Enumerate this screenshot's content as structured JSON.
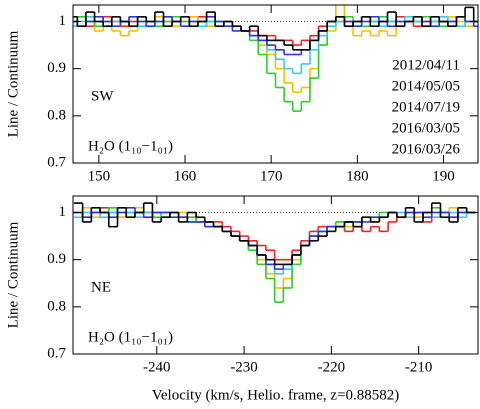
{
  "chart_data": [
    {
      "type": "line",
      "drawstyle": "steps-mid",
      "region": "SW",
      "species": "H₂O (1₁₀−1₀₁)",
      "ylabel": "Line / Continuum",
      "x": [
        147,
        148,
        149,
        150,
        151,
        152,
        153,
        154,
        155,
        156,
        157,
        158,
        159,
        160,
        161,
        162,
        163,
        164,
        165,
        166,
        167,
        168,
        169,
        170,
        171,
        172,
        173,
        174,
        175,
        176,
        177,
        178,
        179,
        180,
        181,
        182,
        183,
        184,
        185,
        186,
        187,
        188,
        189,
        190,
        191,
        192,
        193,
        194
      ],
      "series": [
        {
          "name": "2012/04/11",
          "color": "#e8252a",
          "values": [
            1.0,
            1.01,
            0.99,
            1.0,
            1.01,
            1.0,
            0.99,
            1.0,
            1.01,
            0.99,
            1.0,
            1.01,
            1.0,
            0.99,
            1.0,
            1.01,
            0.99,
            1.0,
            1.0,
            0.99,
            0.98,
            0.98,
            0.97,
            0.97,
            0.96,
            0.96,
            0.95,
            0.96,
            0.97,
            0.99,
            1.0,
            1.01,
            1.0,
            0.99,
            1.01,
            1.0,
            0.99,
            1.0,
            1.01,
            1.0,
            0.99,
            1.0,
            1.01,
            1.0,
            0.99,
            1.01,
            1.0,
            1.0
          ]
        },
        {
          "name": "2014/05/05",
          "color": "#f2c200",
          "values": [
            1.0,
            0.99,
            1.0,
            0.98,
            0.99,
            0.98,
            0.97,
            0.98,
            0.99,
            1.0,
            1.01,
            1.0,
            0.99,
            1.0,
            1.01,
            1.0,
            0.99,
            1.0,
            0.99,
            0.99,
            0.98,
            0.97,
            0.95,
            0.93,
            0.9,
            0.87,
            0.85,
            0.86,
            0.9,
            0.95,
            0.98,
            1.04,
            0.99,
            0.97,
            0.98,
            0.97,
            0.98,
            0.97,
            0.99,
            1.0,
            1.01,
            1.0,
            0.99,
            1.0,
            1.01,
            1.0,
            0.99,
            1.0
          ]
        },
        {
          "name": "2014/07/19",
          "color": "#2ecc2e",
          "values": [
            1.0,
            1.01,
            1.0,
            0.99,
            1.0,
            1.01,
            1.0,
            0.99,
            1.0,
            1.0,
            0.99,
            1.0,
            1.01,
            1.0,
            0.99,
            1.0,
            1.0,
            0.99,
            1.0,
            0.99,
            0.98,
            0.96,
            0.93,
            0.89,
            0.86,
            0.83,
            0.81,
            0.83,
            0.88,
            0.95,
            0.99,
            1.0,
            1.01,
            1.0,
            0.99,
            1.0,
            1.01,
            1.0,
            0.99,
            1.0,
            1.0,
            1.01,
            1.0,
            0.99,
            1.0,
            1.01,
            1.0,
            1.0
          ]
        },
        {
          "name": "2016/03/05",
          "color": "#33ccee",
          "values": [
            0.99,
            1.0,
            1.01,
            1.0,
            0.99,
            1.0,
            1.0,
            1.01,
            0.99,
            1.0,
            1.0,
            0.99,
            1.0,
            1.01,
            1.0,
            0.99,
            1.0,
            1.0,
            0.99,
            0.99,
            0.98,
            0.97,
            0.96,
            0.94,
            0.92,
            0.9,
            0.89,
            0.91,
            0.94,
            0.97,
            0.99,
            1.0,
            0.99,
            1.0,
            1.01,
            1.0,
            0.99,
            1.0,
            1.0,
            1.01,
            1.0,
            0.99,
            1.0,
            1.01,
            1.0,
            0.99,
            1.0,
            1.0
          ]
        },
        {
          "name": "2016/03/26",
          "color": "#3333dd",
          "values": [
            1.0,
            0.99,
            1.0,
            1.01,
            1.0,
            0.99,
            1.0,
            1.01,
            1.0,
            0.99,
            1.0,
            1.01,
            1.0,
            0.99,
            1.0,
            1.0,
            1.01,
            1.0,
            0.99,
            0.98,
            0.98,
            0.97,
            0.96,
            0.95,
            0.94,
            0.93,
            0.93,
            0.94,
            0.96,
            0.98,
            1.0,
            1.01,
            1.0,
            0.99,
            1.0,
            1.01,
            1.0,
            0.99,
            1.0,
            1.0,
            1.01,
            1.0,
            0.99,
            1.0,
            1.0,
            1.01,
            1.0,
            0.99
          ]
        },
        {
          "color": "#000000",
          "values": [
            1.01,
            0.99,
            1.02,
            1.0,
            0.99,
            1.01,
            1.0,
            0.99,
            1.01,
            1.0,
            1.02,
            0.99,
            1.0,
            1.01,
            0.99,
            1.0,
            1.02,
            0.99,
            1.0,
            0.99,
            0.98,
            0.99,
            0.97,
            0.96,
            0.96,
            0.95,
            0.94,
            0.94,
            0.96,
            0.98,
            1.0,
            1.01,
            0.99,
            1.0,
            1.01,
            0.99,
            1.0,
            1.02,
            0.99,
            1.0,
            1.01,
            0.99,
            1.01,
            1.0,
            0.99,
            1.01,
            1.03,
            1.0
          ]
        }
      ],
      "xlim": [
        147,
        194
      ],
      "ylim": [
        0.7,
        1.035
      ],
      "xticks": [
        150,
        160,
        170,
        180,
        190
      ],
      "yticks": [
        0.7,
        0.8,
        0.9,
        1
      ],
      "reference_line": 1
    },
    {
      "type": "line",
      "drawstyle": "steps-mid",
      "region": "NE",
      "species": "H₂O (1₁₀−1₀₁)",
      "ylabel": "Line / Continuum",
      "xlabel": "Velocity (km/s, Helio. frame, z=0.88582)",
      "x": [
        -249,
        -248,
        -247,
        -246,
        -245,
        -244,
        -243,
        -242,
        -241,
        -240,
        -239,
        -238,
        -237,
        -236,
        -235,
        -234,
        -233,
        -232,
        -231,
        -230,
        -229,
        -228,
        -227,
        -226,
        -225,
        -224,
        -223,
        -222,
        -221,
        -220,
        -219,
        -218,
        -217,
        -216,
        -215,
        -214,
        -213,
        -212,
        -211,
        -210,
        -209,
        -208,
        -207,
        -206,
        -205,
        -204
      ],
      "series": [
        {
          "color": "#e8252a",
          "values": [
            1.0,
            0.99,
            1.0,
            1.01,
            1.0,
            0.99,
            1.0,
            1.0,
            0.99,
            1.0,
            0.99,
            1.0,
            0.99,
            0.99,
            0.98,
            0.98,
            0.98,
            0.97,
            0.96,
            0.95,
            0.94,
            0.93,
            0.92,
            0.9,
            0.9,
            0.92,
            0.94,
            0.96,
            0.97,
            0.97,
            0.97,
            0.96,
            0.97,
            0.96,
            0.97,
            0.96,
            0.98,
            0.99,
            1.0,
            0.99,
            0.98,
            0.99,
            1.0,
            0.99,
            1.0,
            1.0
          ]
        },
        {
          "color": "#f2c200",
          "values": [
            1.0,
            1.01,
            0.99,
            1.0,
            1.0,
            0.99,
            1.0,
            1.01,
            1.0,
            0.99,
            1.0,
            0.99,
            1.0,
            0.99,
            0.98,
            0.98,
            0.97,
            0.96,
            0.95,
            0.94,
            0.92,
            0.9,
            0.87,
            0.84,
            0.86,
            0.9,
            0.93,
            0.95,
            0.96,
            0.97,
            0.98,
            0.97,
            0.98,
            0.99,
            0.98,
            0.99,
            1.0,
            0.99,
            1.0,
            0.99,
            1.0,
            0.99,
            1.0,
            1.01,
            1.0,
            1.0
          ]
        },
        {
          "color": "#2ecc2e",
          "values": [
            1.0,
            0.99,
            1.0,
            1.0,
            1.01,
            1.0,
            0.99,
            1.0,
            1.0,
            0.99,
            1.0,
            1.0,
            0.99,
            0.99,
            0.98,
            0.98,
            0.97,
            0.96,
            0.95,
            0.94,
            0.92,
            0.89,
            0.86,
            0.81,
            0.84,
            0.89,
            0.93,
            0.95,
            0.96,
            0.97,
            0.98,
            0.98,
            0.98,
            0.99,
            0.99,
            1.0,
            1.0,
            0.99,
            1.0,
            1.0,
            1.0,
            1.01,
            1.0,
            0.99,
            1.0,
            1.0
          ]
        },
        {
          "color": "#33ccee",
          "values": [
            0.99,
            1.0,
            1.0,
            0.99,
            1.0,
            1.01,
            1.0,
            0.99,
            1.0,
            1.0,
            0.99,
            1.0,
            0.99,
            0.98,
            0.98,
            0.97,
            0.97,
            0.96,
            0.95,
            0.94,
            0.93,
            0.91,
            0.89,
            0.87,
            0.88,
            0.91,
            0.93,
            0.95,
            0.96,
            0.97,
            0.97,
            0.98,
            0.98,
            0.99,
            0.99,
            0.99,
            1.0,
            1.0,
            0.99,
            1.0,
            1.0,
            0.99,
            1.0,
            1.0,
            0.99,
            1.0
          ]
        },
        {
          "color": "#3333dd",
          "values": [
            1.0,
            0.99,
            1.0,
            1.0,
            0.99,
            1.0,
            1.01,
            1.0,
            0.99,
            1.0,
            1.0,
            0.99,
            0.99,
            0.98,
            0.98,
            0.97,
            0.97,
            0.96,
            0.95,
            0.94,
            0.93,
            0.91,
            0.89,
            0.88,
            0.89,
            0.91,
            0.93,
            0.95,
            0.96,
            0.97,
            0.97,
            0.98,
            0.98,
            0.98,
            0.99,
            0.99,
            1.0,
            0.99,
            1.0,
            1.0,
            0.99,
            1.0,
            1.0,
            0.99,
            1.0,
            1.0
          ]
        },
        {
          "color": "#000000",
          "values": [
            1.02,
            0.98,
            1.01,
            1.0,
            0.97,
            1.01,
            0.99,
            1.0,
            1.02,
            0.98,
            0.99,
            1.0,
            0.98,
            1.0,
            0.99,
            0.98,
            0.97,
            0.96,
            0.95,
            0.94,
            0.93,
            0.91,
            0.9,
            0.89,
            0.89,
            0.91,
            0.93,
            0.94,
            0.95,
            0.96,
            0.97,
            0.98,
            0.97,
            0.99,
            0.98,
            0.99,
            1.0,
            0.99,
            1.01,
            0.98,
            1.0,
            1.02,
            0.99,
            0.98,
            1.01,
            1.0
          ]
        }
      ],
      "xlim": [
        -249.6,
        -203.2
      ],
      "ylim": [
        0.7,
        1.035
      ],
      "xticks": [
        -240,
        -230,
        -220,
        -210
      ],
      "yticks": [
        0.7,
        0.8,
        0.9,
        1
      ],
      "reference_line": 1
    }
  ]
}
